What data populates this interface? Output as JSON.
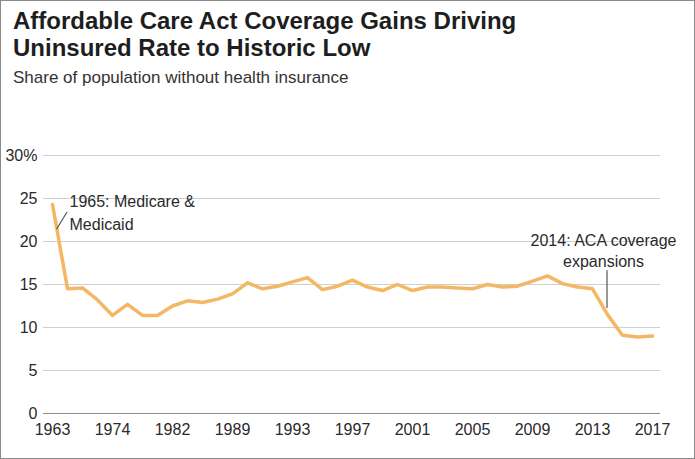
{
  "chart_data": {
    "type": "line",
    "title": "Affordable Care Act Coverage Gains Driving\nUninsured Rate to Historic Low",
    "subtitle": "Share of population without health insurance",
    "categories": [
      "1963",
      null,
      null,
      null,
      "1974",
      null,
      null,
      null,
      "1982",
      null,
      null,
      null,
      "1989",
      null,
      null,
      null,
      "1993",
      null,
      null,
      null,
      "1997",
      null,
      null,
      null,
      "2001",
      null,
      null,
      null,
      "2005",
      null,
      null,
      null,
      "2009",
      null,
      null,
      null,
      "2013",
      null,
      null,
      null,
      "2017"
    ],
    "values": [
      24.3,
      14.5,
      14.6,
      13.2,
      11.4,
      12.7,
      11.4,
      11.4,
      12.5,
      13.1,
      12.9,
      13.3,
      13.9,
      15.2,
      14.5,
      14.8,
      15.3,
      15.8,
      14.4,
      14.8,
      15.5,
      14.7,
      14.3,
      15.0,
      14.3,
      14.7,
      14.7,
      14.6,
      14.5,
      15.0,
      14.7,
      14.8,
      15.4,
      16.0,
      15.1,
      14.7,
      14.5,
      11.5,
      9.1,
      8.9,
      9.0
    ],
    "color": "#f4b763",
    "ylim": [
      0,
      30
    ],
    "yticks": [
      0,
      5,
      10,
      15,
      20,
      25,
      {
        "value": 30,
        "label": "30%"
      }
    ],
    "grid": true,
    "annotations": [
      "1965: Medicare &\nMedicaid",
      "2014: ACA coverage\nexpansions"
    ]
  }
}
